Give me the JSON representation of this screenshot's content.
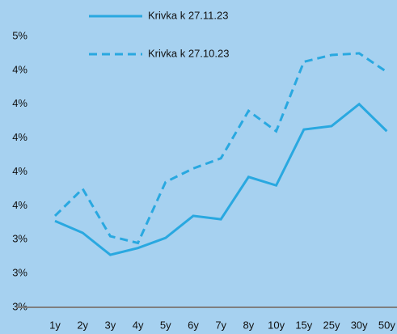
{
  "chart_data": {
    "type": "line",
    "categories": [
      "1y",
      "2y",
      "3y",
      "4y",
      "5y",
      "6y",
      "7y",
      "8y",
      "10y",
      "15y",
      "25y",
      "30y",
      "50y"
    ],
    "series": [
      {
        "name": "Krivka k 27.11.23",
        "color": "#29a8e0",
        "dash": false,
        "values": [
          3.41,
          3.34,
          3.21,
          3.25,
          3.31,
          3.44,
          3.42,
          3.67,
          3.62,
          3.95,
          3.97,
          4.1,
          3.94
        ]
      },
      {
        "name": "Krivka k 27.10.23",
        "color": "#29a8e0",
        "dash": true,
        "values": [
          3.44,
          3.6,
          3.32,
          3.28,
          3.64,
          3.72,
          3.78,
          4.06,
          3.94,
          4.35,
          4.39,
          4.4,
          4.29
        ]
      }
    ],
    "ylim": [
      2.9,
      4.5
    ],
    "yticks": [
      {
        "value": 2.9,
        "label": "3%"
      },
      {
        "value": 3.1,
        "label": "3%"
      },
      {
        "value": 3.3,
        "label": "3%"
      },
      {
        "value": 3.5,
        "label": "4%"
      },
      {
        "value": 3.7,
        "label": "4%"
      },
      {
        "value": 3.9,
        "label": "4%"
      },
      {
        "value": 4.1,
        "label": "4%"
      },
      {
        "value": 4.3,
        "label": "4%"
      },
      {
        "value": 4.5,
        "label": "5%"
      }
    ],
    "legend": "top",
    "grid": false
  }
}
